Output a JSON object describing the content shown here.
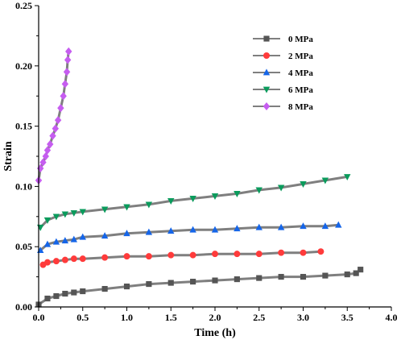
{
  "chart_data": {
    "type": "scatter",
    "title": "",
    "xlabel": "Time (h)",
    "ylabel": "Strain",
    "xlim": [
      0,
      4.0
    ],
    "ylim": [
      0,
      0.25
    ],
    "xticks": [
      "0.0",
      "0.5",
      "1.0",
      "1.5",
      "2.0",
      "2.5",
      "3.0",
      "3.5",
      "4.0"
    ],
    "yticks": [
      "0.00",
      "0.05",
      "0.10",
      "0.15",
      "0.20",
      "0.25"
    ],
    "grid": false,
    "legend_position": "top-right",
    "fit_color": "#7f7f7f",
    "series": [
      {
        "name": "0 MPa",
        "color": "#555555",
        "marker": "square",
        "x": [
          0.0,
          0.1,
          0.2,
          0.3,
          0.4,
          0.5,
          0.75,
          1.0,
          1.25,
          1.5,
          1.75,
          2.0,
          2.25,
          2.5,
          2.75,
          3.0,
          3.25,
          3.5,
          3.6,
          3.65
        ],
        "y": [
          0.002,
          0.007,
          0.009,
          0.011,
          0.012,
          0.013,
          0.015,
          0.017,
          0.019,
          0.02,
          0.021,
          0.022,
          0.023,
          0.024,
          0.025,
          0.025,
          0.026,
          0.027,
          0.028,
          0.031
        ]
      },
      {
        "name": "2 MPa",
        "color": "#ff3b3b",
        "marker": "circle",
        "x": [
          0.05,
          0.1,
          0.2,
          0.3,
          0.4,
          0.5,
          0.75,
          1.0,
          1.25,
          1.5,
          1.75,
          2.0,
          2.25,
          2.5,
          2.75,
          3.0,
          3.2
        ],
        "y": [
          0.035,
          0.037,
          0.038,
          0.039,
          0.04,
          0.04,
          0.041,
          0.042,
          0.042,
          0.043,
          0.043,
          0.044,
          0.044,
          0.044,
          0.045,
          0.045,
          0.046
        ]
      },
      {
        "name": "4 MPa",
        "color": "#1565e8",
        "marker": "triangle-up",
        "x": [
          0.02,
          0.1,
          0.2,
          0.3,
          0.4,
          0.5,
          0.75,
          1.0,
          1.25,
          1.5,
          1.75,
          2.0,
          2.25,
          2.5,
          2.75,
          3.0,
          3.25,
          3.4
        ],
        "y": [
          0.047,
          0.052,
          0.054,
          0.055,
          0.056,
          0.058,
          0.059,
          0.061,
          0.062,
          0.063,
          0.064,
          0.064,
          0.065,
          0.066,
          0.066,
          0.067,
          0.067,
          0.068
        ]
      },
      {
        "name": "6 MPa",
        "color": "#0a9b5c",
        "marker": "triangle-down",
        "x": [
          0.02,
          0.1,
          0.2,
          0.3,
          0.4,
          0.5,
          0.75,
          1.0,
          1.25,
          1.5,
          1.75,
          2.0,
          2.25,
          2.5,
          2.75,
          3.0,
          3.25,
          3.5
        ],
        "y": [
          0.066,
          0.072,
          0.075,
          0.077,
          0.078,
          0.079,
          0.081,
          0.083,
          0.085,
          0.088,
          0.09,
          0.092,
          0.094,
          0.097,
          0.099,
          0.102,
          0.105,
          0.108
        ]
      },
      {
        "name": "8 MPa",
        "color": "#c65df0",
        "marker": "diamond",
        "x": [
          0.0,
          0.02,
          0.05,
          0.08,
          0.1,
          0.13,
          0.16,
          0.19,
          0.22,
          0.25,
          0.28,
          0.3,
          0.32,
          0.33,
          0.34
        ],
        "y": [
          0.105,
          0.115,
          0.12,
          0.125,
          0.13,
          0.135,
          0.142,
          0.148,
          0.155,
          0.165,
          0.175,
          0.185,
          0.195,
          0.205,
          0.212
        ]
      }
    ]
  }
}
